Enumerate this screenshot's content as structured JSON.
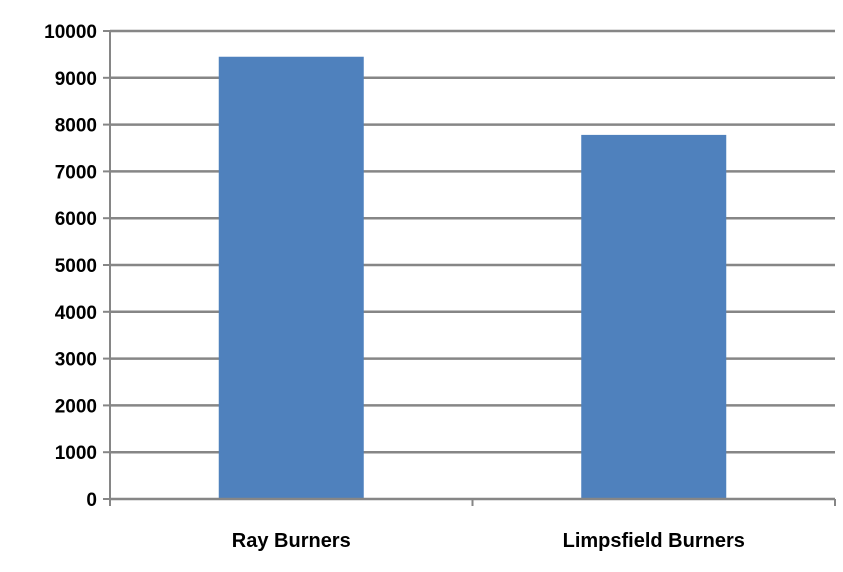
{
  "chart_data": {
    "type": "bar",
    "title": "",
    "xlabel": "",
    "ylabel": "",
    "categories": [
      "Ray Burners",
      "Limpsfield Burners"
    ],
    "values": [
      9450,
      7780
    ],
    "ylim": [
      0,
      10000
    ],
    "yticks": [
      "0",
      "1000",
      "2000",
      "3000",
      "4000",
      "5000",
      "6000",
      "7000",
      "8000",
      "9000",
      "10000"
    ],
    "grid": true,
    "legend": "none",
    "colors": {
      "bar": "#4f81bd",
      "grid": "#868686",
      "axis": "#868686"
    }
  }
}
